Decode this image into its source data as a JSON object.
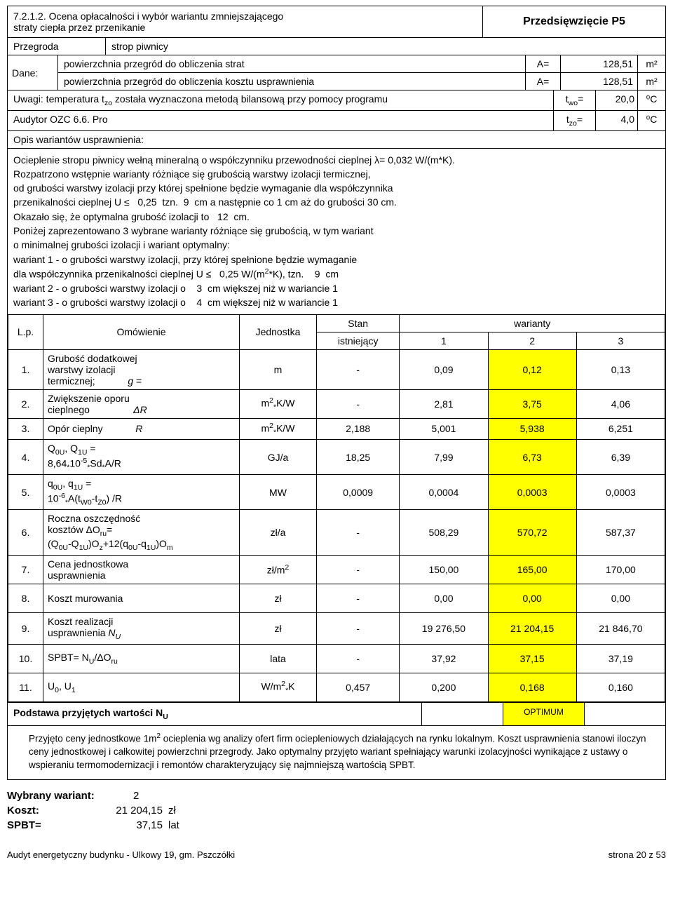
{
  "header": {
    "section_number": "7.2.1.2.",
    "title_lines": [
      "Ocena opłacalności i wybór wariantu zmniejszającego",
      "straty ciepła przez przenikanie"
    ],
    "badge": "Przedsięwzięcie P5"
  },
  "przegroda_label": "Przegroda",
  "przegroda_value": "strop piwnicy",
  "dane_label": "Dane:",
  "dane_rows": [
    {
      "text": "powierzchnia przegród do obliczenia strat",
      "a": "A=",
      "v": "128,51",
      "u": "m²"
    },
    {
      "text": "powierzchnia przegród do obliczenia kosztu usprawnienia",
      "a": "A=",
      "v": "128,51",
      "u": "m²"
    }
  ],
  "uwagi": [
    {
      "text_html": "Uwagi: temperatura t<sub>zo</sub> została wyznaczona metodą bilansową przy pomocy programu",
      "sym_html": "t<sub>wo</sub>=",
      "val": "20,0",
      "unit": "⁰C"
    },
    {
      "text_html": "Audytor OZC 6.6. Pro",
      "sym_html": "t<sub>zo</sub>=",
      "val": "4,0",
      "unit": "⁰C"
    }
  ],
  "opis_head": "Opis wariantów usprawnienia:",
  "opis_body_html": "Ocieplenie stropu piwnicy wełną mineralną o współczynniku przewodności cieplnej λ= 0,032 W/(m*K).<br>Rozpatrzono wstępnie warianty różniące się grubością warstwy izolacji termicznej,<br>od grubości warstwy izolacji przy której spełnione będzie wymaganie dla współczynnika<br>przenikalności cieplnej U ≤ &nbsp;&nbsp;0,25&nbsp; tzn. &nbsp;9 &nbsp;cm a następnie co 1 cm aż do grubości 30 cm.<br>Okazało się, że optymalna grubość izolacji to &nbsp;&nbsp;12 &nbsp;cm.<br>Poniżej zaprezentowano 3 wybrane warianty różniące się grubością, w tym wariant<br>o minimalnej grubości izolacji i wariant optymalny:<br>wariant 1 - o grubości warstwy izolacji, przy której spełnione będzie wymaganie<br>dla współczynnika przenikalności cieplnej U ≤ &nbsp;&nbsp;0,25 W/(m<sup>2</sup>*K), tzn. &nbsp;&nbsp;&nbsp;9 &nbsp;cm<br>wariant 2 - o grubości warstwy izolacji o &nbsp;&nbsp;&nbsp;3 &nbsp;cm większej niż w wariancie 1<br>wariant 3 - o grubości warstwy izolacji o &nbsp;&nbsp;&nbsp;4 &nbsp;cm większej niż w wariancie 1",
  "table": {
    "head": {
      "lp": "L.p.",
      "om": "Omówienie",
      "jed": "Jednostka",
      "stan_top": "Stan",
      "stan_bot": "istniejący",
      "war": "warianty",
      "w1": "1",
      "w2": "2",
      "w3": "3"
    },
    "rows": [
      {
        "n": "1.",
        "om_html": "Grubość dodatkowej<br>warstwy izolacji<br>termicznej;&nbsp;&nbsp;&nbsp;&nbsp;&nbsp;&nbsp;&nbsp;&nbsp;&nbsp;&nbsp;&nbsp;&nbsp;<i>g</i> =",
        "jed": "m",
        "s": "-",
        "v1": "0,09",
        "v2": "0,12",
        "v3": "0,13",
        "hl": 2
      },
      {
        "n": "2.",
        "om_html": "Zwiększenie oporu<br>cieplnego&nbsp;&nbsp;&nbsp;&nbsp;&nbsp;&nbsp;&nbsp;&nbsp;&nbsp;&nbsp;&nbsp;&nbsp;&nbsp;&nbsp;&nbsp;&nbsp;<i>ΔR</i>",
        "jed_html": "m<sup>2</sup><sub>*</sub>K/W",
        "s": "-",
        "v1": "2,81",
        "v2": "3,75",
        "v3": "4,06",
        "hl": 2
      },
      {
        "n": "3.",
        "om_html": "Opór cieplny&nbsp;&nbsp;&nbsp;&nbsp;&nbsp;&nbsp;&nbsp;&nbsp;&nbsp;&nbsp;&nbsp;&nbsp;<i>R</i>",
        "jed_html": "m<sup>2</sup><sub>*</sub>K/W",
        "s": "2,188",
        "v1": "5,001",
        "v2": "5,938",
        "v3": "6,251",
        "hl": 2
      },
      {
        "n": "4.",
        "om_html": "Q<sub>0U</sub>, Q<sub>1U</sub> =<br>8,64<sub>*</sub>10<sup>-5</sup><sub>*</sub>Sd<sub>*</sub>A/R",
        "jed": "GJ/a",
        "s": "18,25",
        "v1": "7,99",
        "v2": "6,73",
        "v3": "6,39",
        "hl": 2
      },
      {
        "n": "5.",
        "om_html": "q<sub>0U</sub>, q<sub>1U</sub> =<br>10<sup>-6</sup><sub>*</sub>A(t<sub>W0</sub>-t<sub>Z0</sub>) /R",
        "jed": "MW",
        "s": "0,0009",
        "v1": "0,0004",
        "v2": "0,0003",
        "v3": "0,0003",
        "hl": 2,
        "tall": true
      },
      {
        "n": "6.",
        "om_html": "Roczna oszczędność<br>kosztów ΔO<sub>ru</sub>=<br>(Q<sub>0U</sub>-Q<sub>1U</sub>)O<sub>z</sub>+12(q<sub>0U</sub>-q<sub>1U</sub>)O<sub>m</sub>",
        "jed": "zł/a",
        "s": "-",
        "v1": "508,29",
        "v2": "570,72",
        "v3": "587,37",
        "hl": 2
      },
      {
        "n": "7.",
        "om_html": "Cena jednostkowa<br>usprawnienia",
        "jed_html": "zł/m<sup>2</sup>",
        "s": "-",
        "v1": "150,00",
        "v2": "165,00",
        "v3": "170,00",
        "hl": 2
      },
      {
        "n": "8.",
        "om_html": "Koszt murowania",
        "jed": "zł",
        "s": "-",
        "v1": "0,00",
        "v2": "0,00",
        "v3": "0,00",
        "hl": 2,
        "tall": true
      },
      {
        "n": "9.",
        "om_html": "Koszt realizacji<br>usprawnienia <i>N<sub>U</sub></i>",
        "jed": "zł",
        "s": "-",
        "v1": "19 276,50",
        "v2": "21 204,15",
        "v3": "21 846,70",
        "hl": 2
      },
      {
        "n": "10.",
        "om_html": "SPBT= N<sub>U</sub>/ΔO<sub>ru</sub>",
        "jed": "lata",
        "s": "-",
        "v1": "37,92",
        "v2": "37,15",
        "v3": "37,19",
        "hl": 2,
        "tall": true
      },
      {
        "n": "11.",
        "om_html": "U<sub>0</sub>, U<sub>1</sub>",
        "jed_html": "W/m<sup>2</sup><sub>*</sub>K",
        "s": "0,457",
        "v1": "0,200",
        "v2": "0,168",
        "v3": "0,160",
        "hl": 2,
        "tall": true
      }
    ]
  },
  "podstawa_html": "Podstawa przyjętych wartości N<sub>U</sub>",
  "optimum": "OPTIMUM",
  "notes_html": "Przyjęto ceny jednostkowe 1m<sup>2</sup> ocieplenia wg analizy ofert firm ociepleniowych działających na rynku lokalnym. Koszt usprawnienia stanowi iloczyn ceny jednostkowej i całkowitej powierzchni przegrody. Jako optymalny przyjęto wariant spełniający warunki izolacyjności wynikające z ustawy o wspieraniu termomodernizacji i remontów charakteryzujący się najmniejszą wartością SPBT.",
  "bottom": {
    "wariant_label": "Wybrany wariant:",
    "wariant_val": "2",
    "koszt_label": "Koszt:",
    "koszt_val": "21 204,15",
    "koszt_unit": "zł",
    "spbt_label": "SPBT=",
    "spbt_val": "37,15",
    "spbt_unit": "lat"
  },
  "footer": {
    "left": "Audyt energetyczny budynku - Ulkowy 19, gm. Pszczółki",
    "right": "strona 20 z 53"
  },
  "colors": {
    "highlight": "#ffff00"
  }
}
